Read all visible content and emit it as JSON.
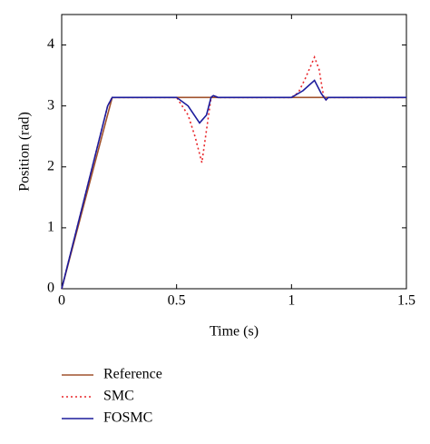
{
  "chart_data": {
    "type": "line",
    "x_label": "Time (s)",
    "y_label": "Position (rad)",
    "xlim": [
      0,
      1.5
    ],
    "ylim": [
      0,
      4.5
    ],
    "xticks": [
      0,
      0.5,
      1,
      1.5
    ],
    "yticks": [
      0,
      1,
      2,
      3,
      4
    ],
    "legend": "below",
    "series": [
      {
        "name": "Reference",
        "color": "#a0522d",
        "style": "solid",
        "x": [
          0,
          0.21,
          0.22,
          1.5
        ],
        "values": [
          0,
          3.0,
          3.14,
          3.14
        ]
      },
      {
        "name": "SMC",
        "color": "#e8262a",
        "style": "dotted",
        "x": [
          0,
          0.2,
          0.22,
          0.5,
          0.55,
          0.58,
          0.61,
          0.63,
          0.65,
          0.66,
          0.68,
          1.0,
          1.03,
          1.06,
          1.1,
          1.12,
          1.14,
          1.15,
          1.16,
          1.5
        ],
        "values": [
          0,
          3.0,
          3.14,
          3.14,
          2.85,
          2.5,
          2.07,
          2.6,
          3.14,
          3.17,
          3.14,
          3.14,
          3.22,
          3.45,
          3.8,
          3.6,
          3.15,
          3.1,
          3.14,
          3.14
        ]
      },
      {
        "name": "FOSMC",
        "color": "#1c1c9c",
        "style": "solid",
        "x": [
          0,
          0.2,
          0.22,
          0.5,
          0.55,
          0.6,
          0.63,
          0.65,
          0.66,
          0.68,
          1.0,
          1.05,
          1.1,
          1.13,
          1.15,
          1.16,
          1.5
        ],
        "values": [
          0,
          3.0,
          3.14,
          3.14,
          3.0,
          2.72,
          2.85,
          3.14,
          3.17,
          3.14,
          3.14,
          3.25,
          3.42,
          3.2,
          3.1,
          3.14,
          3.14
        ]
      }
    ]
  }
}
